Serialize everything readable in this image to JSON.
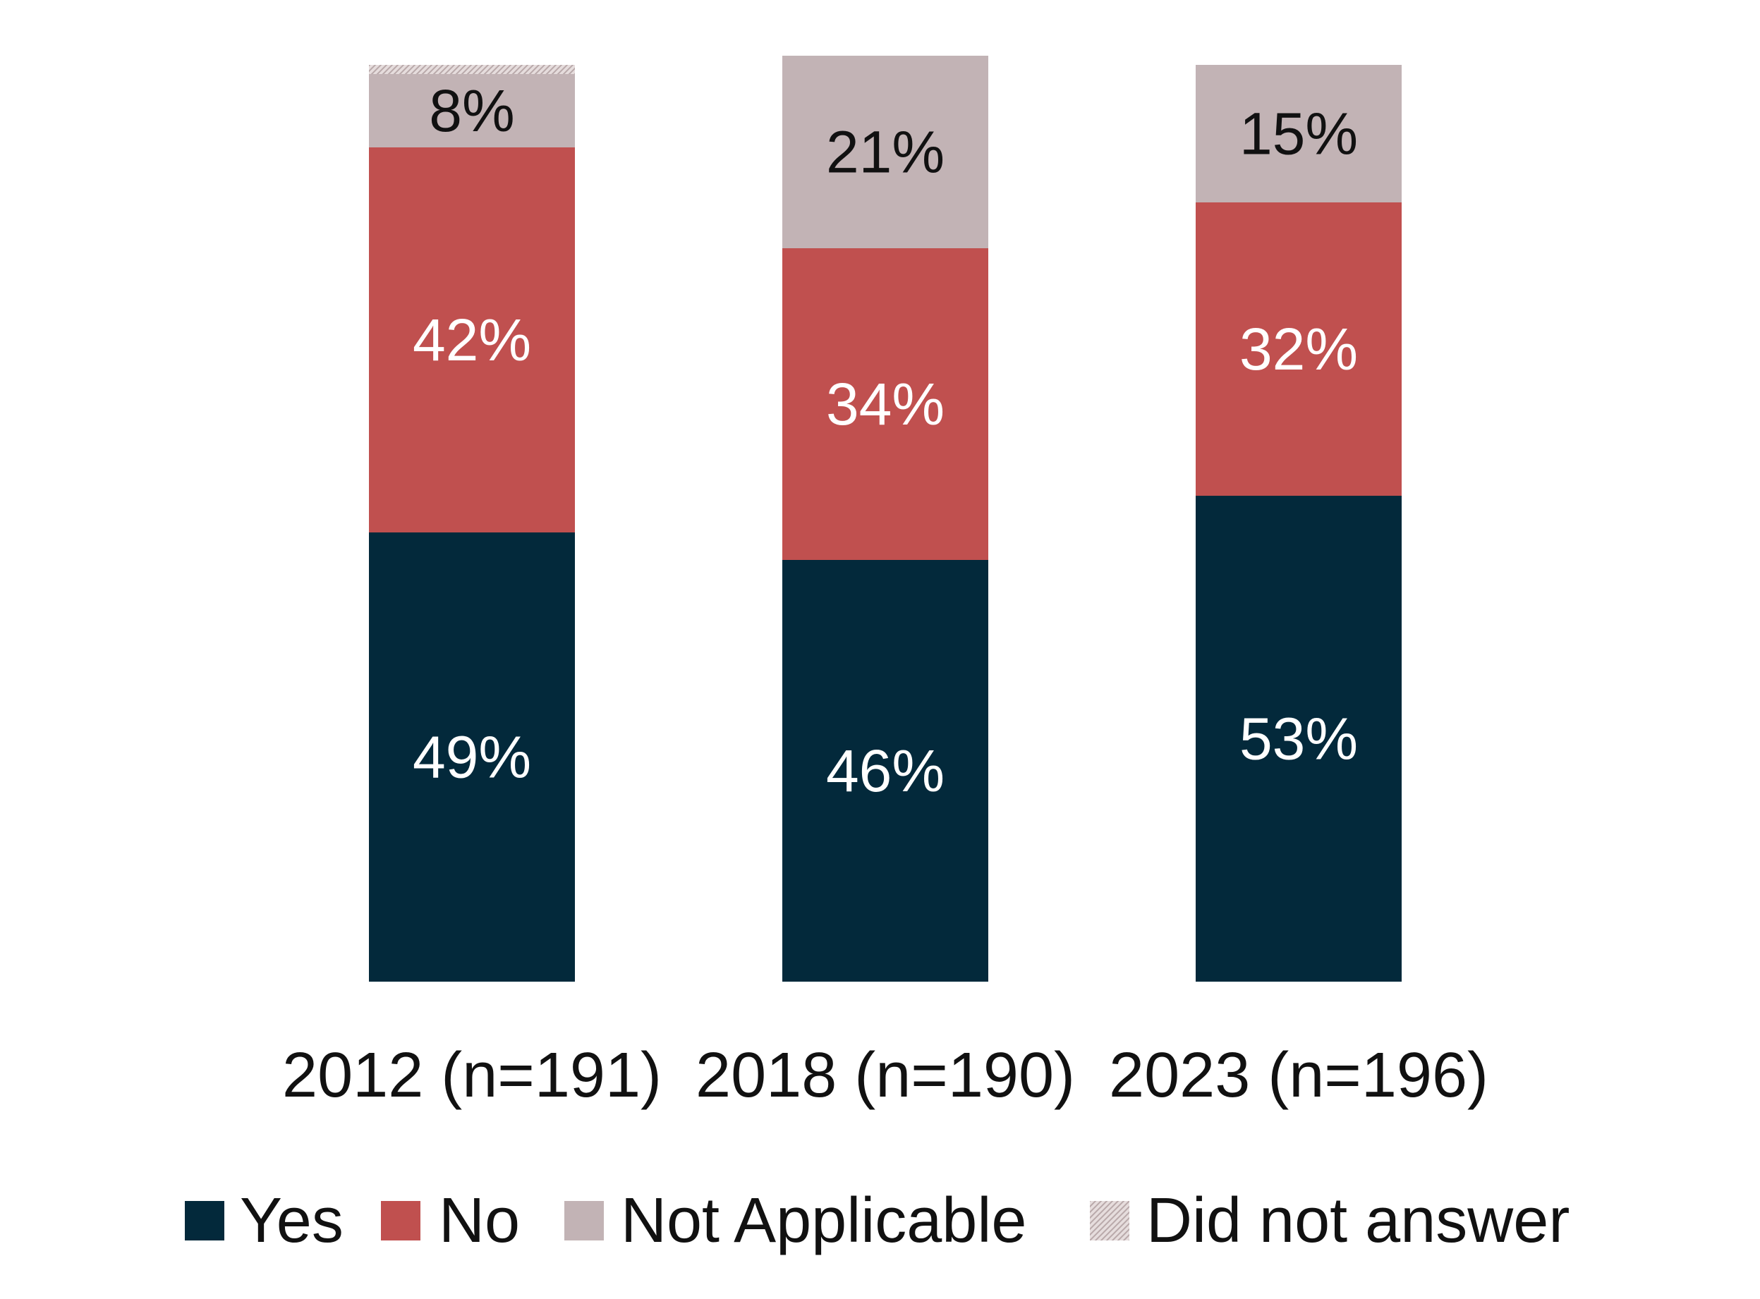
{
  "chart_data": {
    "type": "bar",
    "stacked": true,
    "categories": [
      "2012 (n=191)",
      "2018 (n=190)",
      "2023 (n=196)"
    ],
    "series": [
      {
        "name": "Yes",
        "values": [
          49,
          46,
          53
        ],
        "labels": [
          "49%",
          "46%",
          "53%"
        ],
        "color": "#03293b",
        "label_color": "#ffffff"
      },
      {
        "name": "No",
        "values": [
          42,
          34,
          32
        ],
        "labels": [
          "42%",
          "34%",
          "32%"
        ],
        "color": "#c0504f",
        "label_color": "#ffffff"
      },
      {
        "name": "Not Applicable",
        "values": [
          8,
          21,
          15
        ],
        "labels": [
          "8%",
          "21%",
          "15%"
        ],
        "color": "#c2b3b5",
        "label_color": "#111111"
      },
      {
        "name": "Did not answer",
        "values": [
          1,
          0,
          0
        ],
        "labels": [
          "",
          "",
          ""
        ],
        "color": "#d9cfd0",
        "pattern": "hatched",
        "label_color": "#111111"
      }
    ],
    "ylim": [
      0,
      100
    ],
    "legend": "bottom",
    "grid": false
  }
}
